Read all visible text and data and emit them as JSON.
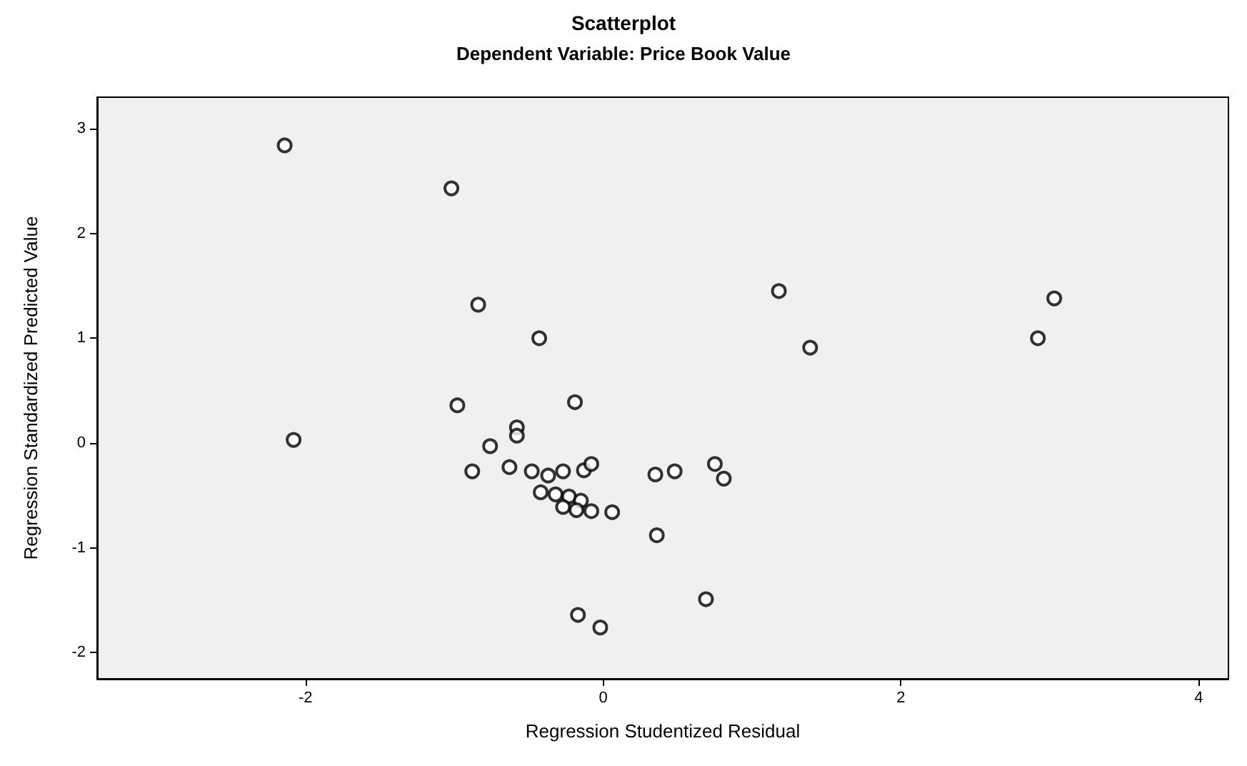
{
  "chart_data": {
    "type": "scatter",
    "title": "Scatterplot",
    "subtitle": "Dependent Variable: Price Book Value",
    "xlabel": "Regression Studentized Residual",
    "ylabel": "Regression Standardized Predicted Value",
    "x": [
      -2.14,
      -1.02,
      -0.84,
      -0.43,
      1.18,
      1.39,
      3.03,
      2.92,
      -0.98,
      -0.19,
      -2.08,
      -0.58,
      -0.58,
      -0.76,
      -0.88,
      -0.63,
      -0.48,
      -0.37,
      -0.27,
      -0.13,
      -0.08,
      -0.42,
      -0.32,
      -0.23,
      -0.15,
      -0.27,
      -0.18,
      -0.08,
      0.06,
      0.35,
      0.48,
      0.75,
      0.81,
      0.36,
      0.69,
      -0.17,
      -0.02
    ],
    "values": [
      2.84,
      2.43,
      1.32,
      1.0,
      1.45,
      0.91,
      1.38,
      1.0,
      0.36,
      0.39,
      0.03,
      0.15,
      0.07,
      -0.03,
      -0.27,
      -0.23,
      -0.27,
      -0.31,
      -0.27,
      -0.26,
      -0.2,
      -0.47,
      -0.49,
      -0.51,
      -0.55,
      -0.61,
      -0.64,
      -0.65,
      -0.66,
      -0.3,
      -0.27,
      -0.2,
      -0.34,
      -0.88,
      -1.49,
      -1.64,
      -1.76
    ],
    "color": "#000000",
    "marker": "circle",
    "grid": false,
    "xlim": [
      -3.4,
      4.2
    ],
    "xticks": [
      -2,
      0,
      2,
      4
    ],
    "ylim": [
      -2.25,
      3.3
    ],
    "yticks": [
      -2,
      -1,
      0,
      1,
      2,
      3
    ]
  }
}
